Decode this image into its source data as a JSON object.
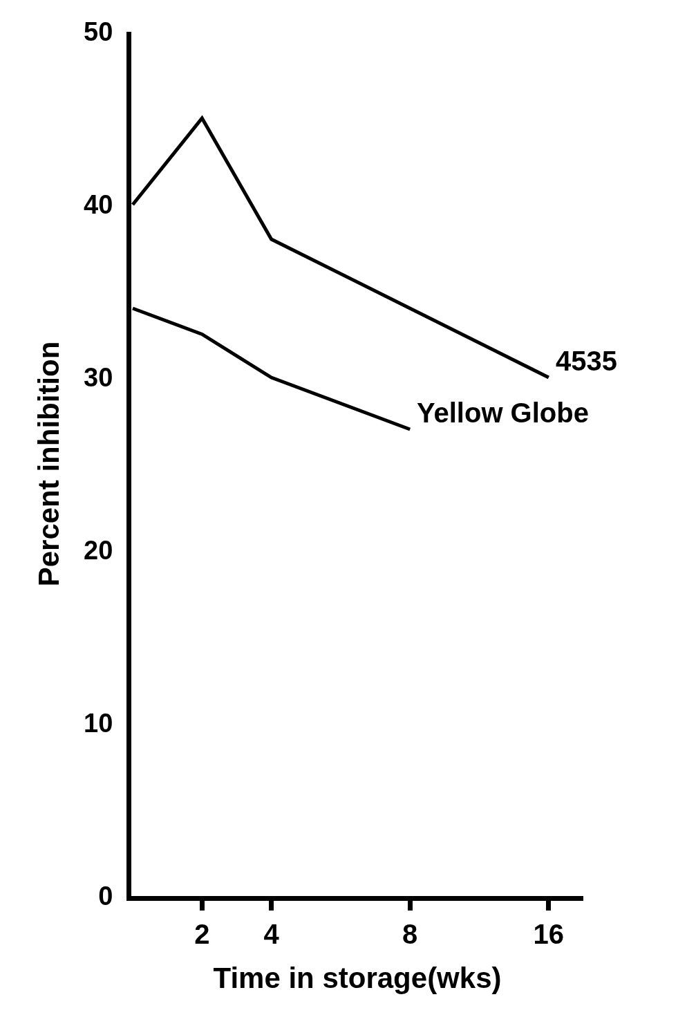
{
  "chart_data": {
    "type": "line",
    "xlabel": "Time in storage(wks)",
    "ylabel": "Percent inhibition",
    "categories": [
      null,
      "2",
      "4",
      null,
      "8",
      null,
      "16"
    ],
    "series": [
      {
        "name": "4535",
        "color": "#000000",
        "values": [
          40,
          45,
          38,
          null,
          34,
          null,
          30
        ]
      },
      {
        "name": "Yellow Globe",
        "color": "#000000",
        "values": [
          34,
          32.5,
          30,
          null,
          27,
          null,
          null
        ]
      }
    ],
    "ylim": [
      0,
      50
    ],
    "yticks": [
      0,
      10,
      20,
      30,
      40,
      50
    ],
    "grid": false,
    "legend": false,
    "marker": "none",
    "line_style": "solid"
  }
}
